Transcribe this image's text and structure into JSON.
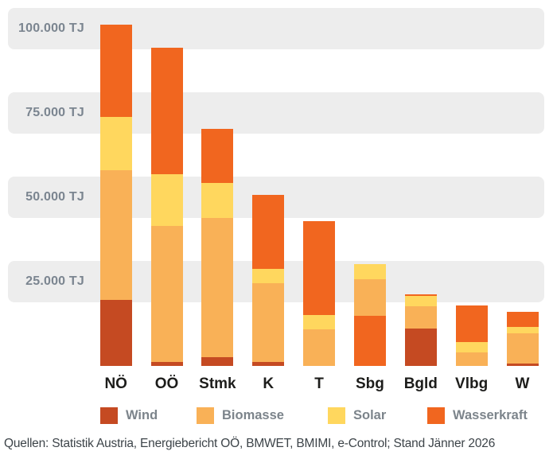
{
  "source_note": "Quellen: Statistik Austria, Energiebericht OÖ, BMWET, BMIMI, e-Control; Stand Jänner 2026",
  "colors": {
    "wind": "#c54a22",
    "biomasse": "#f9b157",
    "solar": "#ffd75e",
    "wasserkraft": "#f1661f",
    "grid_band": "#ededed",
    "ytick_text": "#7b8590",
    "xlabel_text": "#1d1d1b",
    "legend_text": "#7c848b",
    "source_text": "#3d4449",
    "background": "#ffffff"
  },
  "chart_data": {
    "type": "bar",
    "stacked": true,
    "unit": "TJ",
    "title": "",
    "xlabel": "",
    "ylabel": "",
    "ylim": [
      0,
      108000
    ],
    "grid": "horizontal-bands",
    "legend_position": "bottom",
    "categories": [
      "NÖ",
      "OÖ",
      "Stmk",
      "K",
      "T",
      "Sbg",
      "Bgld",
      "Vlbg",
      "W"
    ],
    "series": [
      {
        "name": "Wind",
        "color": "#c54a22",
        "values": [
          19600,
          1200,
          2700,
          1100,
          0,
          0,
          11000,
          0,
          700
        ]
      },
      {
        "name": "Biomasse",
        "color": "#f9b157",
        "values": [
          38500,
          40200,
          41100,
          23500,
          10800,
          10900,
          6600,
          3900,
          8900
        ]
      },
      {
        "name": "Solar",
        "color": "#ffd75e",
        "values": [
          15800,
          15500,
          10400,
          4100,
          4300,
          4300,
          3200,
          3200,
          2000
        ]
      },
      {
        "name": "Wasserkraft",
        "color": "#f1661f",
        "values": [
          27300,
          37500,
          16100,
          22000,
          27800,
          14900,
          400,
          10800,
          4500
        ]
      }
    ],
    "totals": [
      101200,
      94400,
      70300,
      50700,
      42900,
      30100,
      21200,
      17900,
      16100
    ],
    "stack_order_bottom_to_top": {
      "default": [
        "Wind",
        "Biomasse",
        "Solar",
        "Wasserkraft"
      ],
      "Sbg": [
        "Wasserkraft",
        "Biomasse",
        "Solar"
      ]
    },
    "yticks": [
      {
        "value": 100000,
        "label": "100.000 TJ"
      },
      {
        "value": 75000,
        "label": "75.000 TJ"
      },
      {
        "value": 50000,
        "label": "50.000 TJ"
      },
      {
        "value": 25000,
        "label": "25.000 TJ"
      }
    ],
    "legend": [
      "Wind",
      "Biomasse",
      "Solar",
      "Wasserkraft"
    ]
  }
}
